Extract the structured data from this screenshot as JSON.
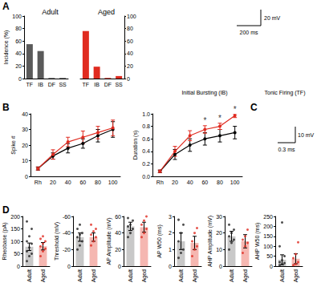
{
  "chart_data": [
    {
      "panel": "A",
      "type": "bar",
      "title": "Adult",
      "categories": [
        "TF",
        "IB",
        "DF",
        "SS"
      ],
      "values": [
        55,
        44,
        1,
        1
      ],
      "color": "#5a5a5a",
      "y_label": "Incidence (%)",
      "ylim": [
        0,
        100
      ],
      "yticks": [
        0,
        20,
        40,
        60,
        80,
        100
      ]
    },
    {
      "type": "bar",
      "title": "Aged",
      "categories": [
        "TF",
        "IB",
        "DF",
        "SS"
      ],
      "values": [
        76,
        19,
        1,
        4
      ],
      "color": "#e02b20",
      "ylim": [
        0,
        100
      ],
      "yticks": [
        0,
        20,
        40,
        60,
        80,
        100
      ]
    },
    {
      "type": "traces",
      "annotations": [
        "Initial Bursting (IB)",
        "Tonic Firing (TF)"
      ],
      "scale_bars": [
        "20 mV",
        "200 ms"
      ]
    },
    {
      "panel": "B",
      "type": "line",
      "categories": [
        "Rh",
        "20",
        "40",
        "60",
        "80",
        "100"
      ],
      "y_label": "Spike #",
      "ylim": [
        0,
        40
      ],
      "yticks": [
        0,
        10,
        20,
        30,
        40
      ],
      "series": [
        {
          "color": "#000000",
          "values": [
            5,
            13,
            18,
            21,
            26,
            30
          ],
          "errors": [
            1,
            2,
            3,
            3,
            4,
            5
          ]
        },
        {
          "color": "#e02b20",
          "values": [
            5,
            14,
            22,
            25,
            28,
            31
          ],
          "errors": [
            1,
            3,
            3,
            4,
            4,
            5
          ]
        }
      ]
    },
    {
      "type": "line",
      "categories": [
        "Rh",
        "20",
        "40",
        "60",
        "80",
        "100"
      ],
      "y_label": "Duration (s)",
      "ylim": [
        0,
        1
      ],
      "yticks": [
        {
          "value": 0,
          "label": "0.0"
        },
        0.2,
        0.4,
        0.6,
        0.8,
        {
          "value": 1,
          "label": "1.0"
        }
      ],
      "series": [
        {
          "color": "#000000",
          "values": [
            0.08,
            0.35,
            0.5,
            0.6,
            0.65,
            0.7
          ],
          "errors": [
            0.02,
            0.08,
            0.1,
            0.1,
            0.1,
            0.1
          ]
        },
        {
          "color": "#e02b20",
          "values": [
            0.08,
            0.4,
            0.65,
            0.75,
            0.8,
            0.97
          ],
          "errors": [
            0.02,
            0.08,
            0.08,
            0.06,
            0.05,
            0.03
          ]
        }
      ],
      "annotations": [
        {
          "x": "60",
          "y": 0.81,
          "text": "*"
        },
        {
          "x": "80",
          "y": 0.85,
          "text": "*"
        },
        {
          "x": "100",
          "y": 1.0,
          "text": "*"
        }
      ]
    },
    {
      "panel": "C",
      "type": "traces",
      "scale_bars": [
        "10 mV",
        "0.3 ms"
      ]
    },
    {
      "panel": "D",
      "type": "bar",
      "categories": [
        "Adult",
        "Aged"
      ],
      "y_label": "Rheobase (pA)",
      "values": [
        78,
        80
      ],
      "errors": [
        15,
        15
      ],
      "colors": [
        "#c8c8c8",
        "#f5b7b1"
      ],
      "ylim": [
        0,
        200
      ],
      "yticks": [
        0,
        50,
        100,
        150,
        200
      ],
      "points": [
        [
          20,
          40,
          50,
          60,
          75,
          90,
          100,
          120,
          150,
          180
        ],
        [
          40,
          60,
          70,
          80,
          90,
          100,
          110,
          120
        ]
      ]
    },
    {
      "type": "bar",
      "categories": [
        "Adult",
        "Aged"
      ],
      "y_label": "Threshold (mV)",
      "values": [
        -35,
        -35
      ],
      "errors": [
        5,
        5
      ],
      "colors": [
        "#c8c8c8",
        "#f5b7b1"
      ],
      "ylim": [
        0,
        -60
      ],
      "yticks": [
        0,
        -20,
        -40,
        -60
      ],
      "points": [
        [
          -20,
          -25,
          -30,
          -35,
          -38,
          -40,
          -45,
          -50
        ],
        [
          -25,
          -30,
          -35,
          -38,
          -42,
          -45,
          -50
        ]
      ]
    },
    {
      "type": "bar",
      "categories": [
        "Adult",
        "Aged"
      ],
      "y_label": "AP Amplitude (mV)",
      "values": [
        48,
        47
      ],
      "errors": [
        5,
        6
      ],
      "colors": [
        "#c8c8c8",
        "#f5b7b1"
      ],
      "ylim": [
        0,
        60
      ],
      "yticks": [
        0,
        20,
        40,
        60
      ],
      "points": [
        [
          35,
          40,
          45,
          48,
          50,
          55,
          58
        ],
        [
          35,
          40,
          45,
          50,
          55,
          60
        ]
      ]
    },
    {
      "type": "bar",
      "categories": [
        "Adult",
        "Aged"
      ],
      "y_label": "AP W50 (ms)",
      "values": [
        1.5,
        1.4
      ],
      "errors": [
        0.5,
        0.4
      ],
      "colors": [
        "#c8c8c8",
        "#f5b7b1"
      ],
      "ylim": [
        0,
        3
      ],
      "yticks": [
        0,
        1,
        2,
        3
      ],
      "points": [
        [
          0.5,
          0.8,
          1.0,
          1.5,
          2.0,
          2.5,
          2.8
        ],
        [
          0.6,
          1.0,
          1.2,
          1.5,
          2.0,
          2.3
        ]
      ]
    },
    {
      "type": "bar",
      "categories": [
        "Adult",
        "Aged"
      ],
      "y_label": "AHP Amplitude (mV)",
      "values": [
        18,
        15
      ],
      "errors": [
        3,
        4
      ],
      "colors": [
        "#c8c8c8",
        "#f5b7b1"
      ],
      "ylim": [
        0,
        30
      ],
      "yticks": [
        0,
        10,
        20,
        30
      ],
      "points": [
        [
          10,
          14,
          16,
          18,
          20,
          22,
          25
        ],
        [
          8,
          12,
          14,
          16,
          18,
          22
        ]
      ]
    },
    {
      "type": "bar",
      "categories": [
        "Adult",
        "Aged"
      ],
      "y_label": "AHP W50 (ms)",
      "values": [
        32,
        37
      ],
      "errors": [
        25,
        25
      ],
      "colors": [
        "#c8c8c8",
        "#f5b7b1"
      ],
      "ylim": [
        0,
        250
      ],
      "yticks": [
        0,
        50,
        100,
        150,
        200,
        250
      ],
      "points": [
        [
          5,
          10,
          15,
          20,
          30,
          50,
          100,
          220
        ],
        [
          5,
          10,
          20,
          40,
          60,
          120
        ]
      ]
    }
  ]
}
